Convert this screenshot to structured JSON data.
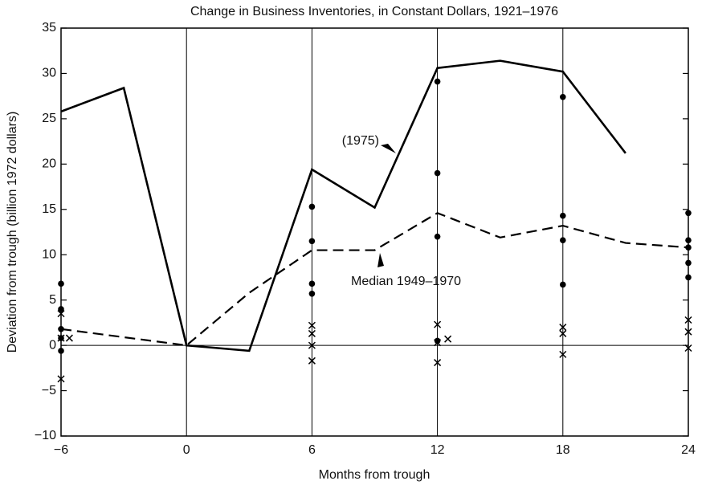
{
  "chart_data": {
    "type": "line",
    "title": "Change in Business Inventories, in Constant Dollars, 1921–1976",
    "x_label": "Months from trough",
    "y_label": "Deviation from trough (billion 1972 dollars)",
    "xlim": [
      -6,
      24
    ],
    "ylim": [
      -10,
      35
    ],
    "xticks": [
      {
        "value": -6,
        "label": "−6"
      },
      0,
      6,
      12,
      18,
      24
    ],
    "yticks": [
      {
        "value": -10,
        "label": "−10"
      },
      {
        "value": -5,
        "label": "−5"
      },
      0,
      5,
      10,
      15,
      20,
      25,
      30,
      35
    ],
    "grid": "x",
    "series": [
      {
        "style": "solid",
        "color": "#000000",
        "x": [
          -6,
          -3,
          0,
          3,
          6,
          9,
          12,
          15,
          18,
          21
        ],
        "values": [
          25.8,
          28.4,
          0,
          -0.6,
          19.4,
          15.2,
          30.6,
          31.4,
          30.2,
          21.2
        ]
      },
      {
        "style": "dashed",
        "color": "#000000",
        "x": [
          -6,
          0,
          3,
          6,
          9,
          12,
          15,
          18,
          21,
          24
        ],
        "values": [
          1.8,
          0,
          5.8,
          10.5,
          10.5,
          14.6,
          11.9,
          13.2,
          11.3,
          10.8
        ]
      },
      {
        "style": "dot",
        "color": "#000000",
        "x": [
          -6,
          -6,
          -6,
          -6,
          -6,
          6,
          6,
          6,
          6,
          12,
          12,
          12,
          12,
          18,
          18,
          18,
          18,
          24,
          24,
          24,
          24,
          24
        ],
        "values": [
          6.8,
          4.0,
          1.8,
          0.8,
          -0.6,
          15.3,
          11.5,
          6.8,
          5.7,
          29.1,
          19.0,
          12.0,
          0.5,
          27.4,
          14.3,
          11.6,
          6.7,
          14.6,
          11.6,
          10.8,
          9.1,
          7.5
        ]
      },
      {
        "style": "cross",
        "color": "#000000",
        "x": [
          -6,
          -6,
          -6,
          -5.6,
          6,
          6,
          6,
          6,
          12,
          12,
          12,
          12.5,
          18,
          18,
          18,
          24,
          24,
          24
        ],
        "values": [
          3.5,
          0.8,
          -3.7,
          0.8,
          2.2,
          1.3,
          0,
          -1.7,
          2.3,
          0.3,
          -1.9,
          0.7,
          2.0,
          1.3,
          -1.0,
          2.8,
          1.5,
          -0.3
        ]
      }
    ],
    "annotations": [
      "(1975)",
      "Median 1949–1970"
    ]
  }
}
